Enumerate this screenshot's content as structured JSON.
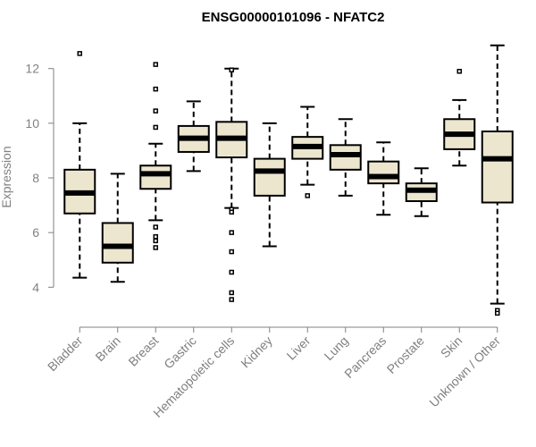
{
  "chart_data": {
    "type": "boxplot",
    "title": "ENSG00000101096 - NFATC2",
    "xlabel": "",
    "ylabel": "Expression",
    "ylim": [
      2.8,
      13.2
    ],
    "yticks": [
      4,
      6,
      8,
      10,
      12
    ],
    "box_fill": "#ede6cf",
    "categories": [
      "Bladder",
      "Brain",
      "Breast",
      "Gastric",
      "Hematopoietic cells",
      "Kidney",
      "Liver",
      "Lung",
      "Pancreas",
      "Prostate",
      "Skin",
      "Unknown / Other"
    ],
    "boxes": [
      {
        "category": "Bladder",
        "whisker_low": 4.35,
        "q1": 6.7,
        "median": 7.45,
        "q3": 8.3,
        "whisker_high": 10.0,
        "outliers": [
          12.55
        ]
      },
      {
        "category": "Brain",
        "whisker_low": 4.2,
        "q1": 4.9,
        "median": 5.5,
        "q3": 6.35,
        "whisker_high": 8.15,
        "outliers": []
      },
      {
        "category": "Breast",
        "whisker_low": 6.45,
        "q1": 7.6,
        "median": 8.15,
        "q3": 8.45,
        "whisker_high": 9.25,
        "outliers": [
          12.15,
          11.25,
          10.45,
          9.85,
          6.2,
          5.85,
          5.7,
          5.45
        ]
      },
      {
        "category": "Gastric",
        "whisker_low": 8.25,
        "q1": 8.95,
        "median": 9.45,
        "q3": 9.9,
        "whisker_high": 10.8,
        "outliers": []
      },
      {
        "category": "Hematopoietic cells",
        "whisker_low": 6.9,
        "q1": 8.75,
        "median": 9.45,
        "q3": 10.05,
        "whisker_high": 12.0,
        "outliers": [
          11.95,
          6.85,
          6.75,
          6.0,
          5.3,
          4.55,
          3.8,
          3.55
        ]
      },
      {
        "category": "Kidney",
        "whisker_low": 5.5,
        "q1": 7.35,
        "median": 8.25,
        "q3": 8.7,
        "whisker_high": 10.0,
        "outliers": []
      },
      {
        "category": "Liver",
        "whisker_low": 7.75,
        "q1": 8.7,
        "median": 9.15,
        "q3": 9.5,
        "whisker_high": 10.6,
        "outliers": [
          7.35
        ]
      },
      {
        "category": "Lung",
        "whisker_low": 7.35,
        "q1": 8.3,
        "median": 8.85,
        "q3": 9.2,
        "whisker_high": 10.15,
        "outliers": []
      },
      {
        "category": "Pancreas",
        "whisker_low": 6.65,
        "q1": 7.8,
        "median": 8.05,
        "q3": 8.6,
        "whisker_high": 9.3,
        "outliers": []
      },
      {
        "category": "Prostate",
        "whisker_low": 6.6,
        "q1": 7.15,
        "median": 7.55,
        "q3": 7.8,
        "whisker_high": 8.35,
        "outliers": []
      },
      {
        "category": "Skin",
        "whisker_low": 8.45,
        "q1": 9.05,
        "median": 9.6,
        "q3": 10.15,
        "whisker_high": 10.85,
        "outliers": [
          11.9
        ]
      },
      {
        "category": "Unknown / Other",
        "whisker_low": 3.4,
        "q1": 7.1,
        "median": 8.7,
        "q3": 9.7,
        "whisker_high": 12.85,
        "outliers": [
          3.15,
          3.05
        ]
      }
    ]
  }
}
